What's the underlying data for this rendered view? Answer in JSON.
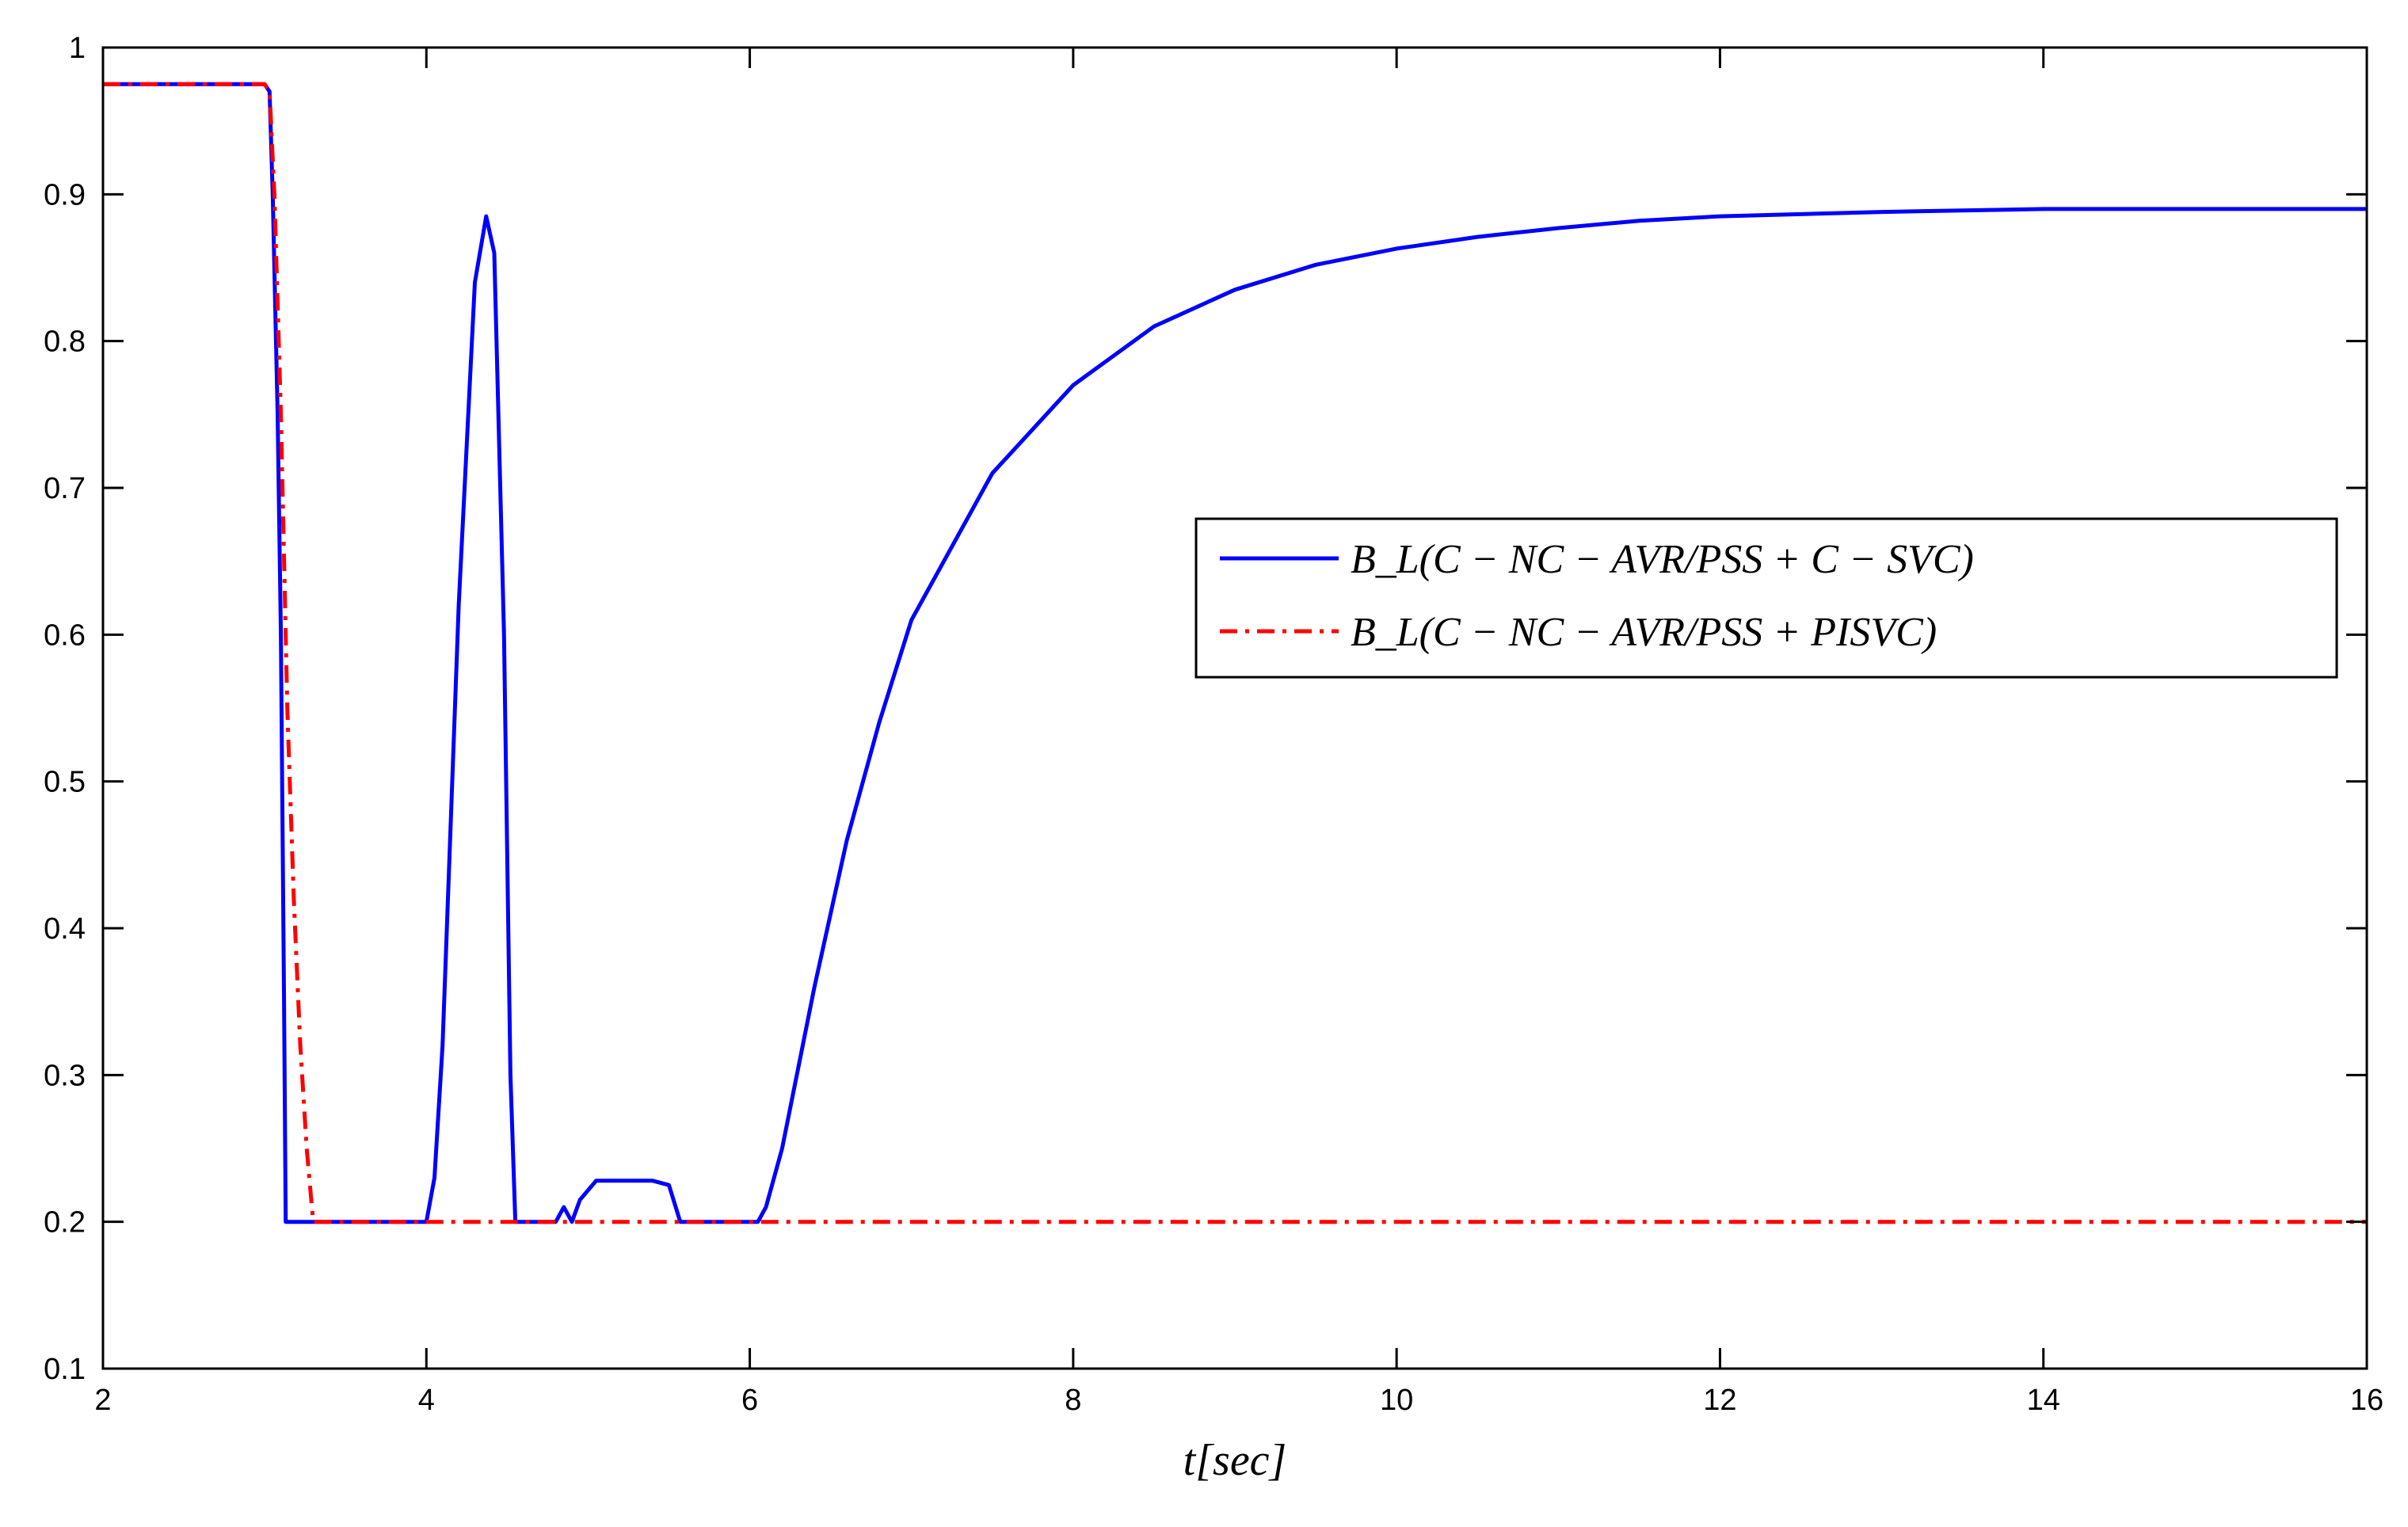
{
  "chart_data": {
    "type": "line",
    "title": "",
    "xlabel": "t[sec]",
    "ylabel": "",
    "xlim": [
      2,
      16
    ],
    "ylim": [
      0.1,
      1.0
    ],
    "xticks": [
      2,
      4,
      6,
      8,
      10,
      12,
      14,
      16
    ],
    "yticks": [
      0.1,
      0.2,
      0.3,
      0.4,
      0.5,
      0.6,
      0.7,
      0.8,
      0.9,
      1.0
    ],
    "xtick_labels": [
      "2",
      "4",
      "6",
      "8",
      "10",
      "12",
      "14",
      "16"
    ],
    "ytick_labels": [
      "0.1",
      "0.2",
      "0.3",
      "0.4",
      "0.5",
      "0.6",
      "0.7",
      "0.8",
      "0.9",
      "1"
    ],
    "grid": false,
    "legend_position": "middle-right",
    "series": [
      {
        "name": "B_L(C − NC − AVR/PSS + C − SVC)",
        "color": "#0000ff",
        "style": "solid",
        "points": [
          [
            2.0,
            0.975
          ],
          [
            3.0,
            0.975
          ],
          [
            3.03,
            0.97
          ],
          [
            3.05,
            0.9
          ],
          [
            3.08,
            0.75
          ],
          [
            3.1,
            0.6
          ],
          [
            3.12,
            0.35
          ],
          [
            3.13,
            0.2
          ],
          [
            4.0,
            0.2
          ],
          [
            4.05,
            0.23
          ],
          [
            4.1,
            0.32
          ],
          [
            4.2,
            0.62
          ],
          [
            4.3,
            0.84
          ],
          [
            4.37,
            0.885
          ],
          [
            4.42,
            0.86
          ],
          [
            4.48,
            0.6
          ],
          [
            4.52,
            0.3
          ],
          [
            4.55,
            0.2
          ],
          [
            4.8,
            0.2
          ],
          [
            4.85,
            0.21
          ],
          [
            4.9,
            0.2
          ],
          [
            4.95,
            0.215
          ],
          [
            5.05,
            0.228
          ],
          [
            5.4,
            0.228
          ],
          [
            5.5,
            0.225
          ],
          [
            5.57,
            0.2
          ],
          [
            6.05,
            0.2
          ],
          [
            6.1,
            0.21
          ],
          [
            6.2,
            0.25
          ],
          [
            6.4,
            0.36
          ],
          [
            6.6,
            0.46
          ],
          [
            6.8,
            0.54
          ],
          [
            7.0,
            0.61
          ],
          [
            7.5,
            0.71
          ],
          [
            8.0,
            0.77
          ],
          [
            8.5,
            0.81
          ],
          [
            9.0,
            0.835
          ],
          [
            9.5,
            0.852
          ],
          [
            10.0,
            0.863
          ],
          [
            10.5,
            0.871
          ],
          [
            11.0,
            0.877
          ],
          [
            11.5,
            0.882
          ],
          [
            12.0,
            0.885
          ],
          [
            13.0,
            0.888
          ],
          [
            14.0,
            0.89
          ],
          [
            15.0,
            0.89
          ],
          [
            16.0,
            0.89
          ]
        ]
      },
      {
        "name": "B_L(C − NC − AVR/PSS + PISVC)",
        "color": "#ff0000",
        "style": "dash-dot",
        "points": [
          [
            2.0,
            0.975
          ],
          [
            3.0,
            0.975
          ],
          [
            3.03,
            0.97
          ],
          [
            3.06,
            0.9
          ],
          [
            3.1,
            0.75
          ],
          [
            3.14,
            0.55
          ],
          [
            3.18,
            0.42
          ],
          [
            3.22,
            0.32
          ],
          [
            3.26,
            0.25
          ],
          [
            3.3,
            0.2
          ],
          [
            16.0,
            0.2
          ]
        ]
      }
    ]
  }
}
